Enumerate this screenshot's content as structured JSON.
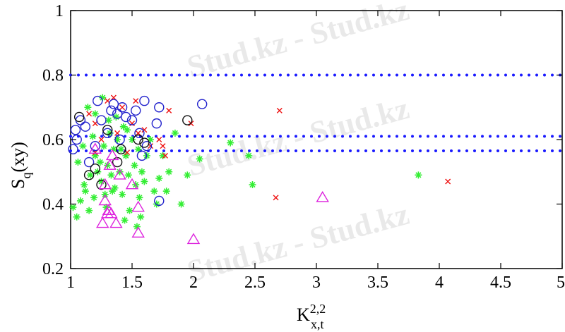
{
  "chart_data": {
    "type": "scatter",
    "xlabel": {
      "base": "K",
      "sup": "2,2",
      "sub": "x,t"
    },
    "ylabel": {
      "base": "S",
      "sub": "q",
      "suffix": "(xy)"
    },
    "xlim": [
      1,
      5
    ],
    "ylim": [
      0.2,
      1
    ],
    "xticks": [
      1,
      1.5,
      2,
      2.5,
      3,
      3.5,
      4,
      4.5,
      5
    ],
    "xtick_labels": [
      "1",
      "1.5",
      "2",
      "2.5",
      "3",
      "3.5",
      "4",
      "4.5",
      "5"
    ],
    "yticks": [
      0.2,
      0.4,
      0.6,
      0.8,
      1
    ],
    "ytick_labels": [
      "0.2",
      "0.4",
      "0.6",
      "0.8",
      "1"
    ],
    "grid": false,
    "legend": "none",
    "reference_lines": [
      {
        "y": 0.8,
        "color": "#1a1aff",
        "style": "dotted"
      },
      {
        "y": 0.61,
        "color": "#1a1aff",
        "style": "dotted"
      },
      {
        "y": 0.565,
        "color": "#1a1aff",
        "style": "dotted"
      }
    ],
    "series": [
      {
        "marker": "star",
        "color": "#33ee33",
        "points": [
          [
            1.02,
            0.39
          ],
          [
            1.05,
            0.36
          ],
          [
            1.08,
            0.41
          ],
          [
            1.1,
            0.58
          ],
          [
            1.12,
            0.44
          ],
          [
            1.15,
            0.38
          ],
          [
            1.18,
            0.61
          ],
          [
            1.2,
            0.55
          ],
          [
            1.22,
            0.5
          ],
          [
            1.25,
            0.47
          ],
          [
            1.27,
            0.58
          ],
          [
            1.28,
            0.43
          ],
          [
            1.3,
            0.52
          ],
          [
            1.31,
            0.66
          ],
          [
            1.33,
            0.49
          ],
          [
            1.35,
            0.57
          ],
          [
            1.36,
            0.45
          ],
          [
            1.38,
            0.6
          ],
          [
            1.4,
            0.5
          ],
          [
            1.42,
            0.43
          ],
          [
            1.43,
            0.64
          ],
          [
            1.45,
            0.55
          ],
          [
            1.47,
            0.49
          ],
          [
            1.48,
            0.38
          ],
          [
            1.5,
            0.6
          ],
          [
            1.52,
            0.52
          ],
          [
            1.53,
            0.46
          ],
          [
            1.55,
            0.57
          ],
          [
            1.56,
            0.42
          ],
          [
            1.57,
            0.36
          ],
          [
            1.58,
            0.5
          ],
          [
            1.6,
            0.47
          ],
          [
            1.62,
            0.55
          ],
          [
            1.65,
            0.6
          ],
          [
            1.68,
            0.44
          ],
          [
            1.7,
            0.4
          ],
          [
            1.72,
            0.48
          ],
          [
            1.75,
            0.55
          ],
          [
            1.78,
            0.44
          ],
          [
            1.8,
            0.5
          ],
          [
            1.85,
            0.62
          ],
          [
            1.9,
            0.4
          ],
          [
            1.95,
            0.49
          ],
          [
            2.05,
            0.54
          ],
          [
            2.3,
            0.59
          ],
          [
            2.45,
            0.55
          ],
          [
            2.48,
            0.46
          ],
          [
            3.83,
            0.49
          ],
          [
            1.14,
            0.7
          ],
          [
            1.2,
            0.68
          ],
          [
            1.26,
            0.73
          ],
          [
            1.32,
            0.62
          ],
          [
            1.37,
            0.67
          ],
          [
            1.41,
            0.57
          ],
          [
            1.46,
            0.63
          ],
          [
            1.24,
            0.53
          ],
          [
            1.16,
            0.49
          ],
          [
            1.06,
            0.53
          ],
          [
            1.34,
            0.44
          ],
          [
            1.29,
            0.39
          ],
          [
            1.44,
            0.35
          ],
          [
            1.54,
            0.33
          ],
          [
            1.11,
            0.46
          ],
          [
            1.19,
            0.42
          ]
        ]
      },
      {
        "marker": "x",
        "color": "#ee1111",
        "points": [
          [
            1.15,
            0.68
          ],
          [
            1.2,
            0.65
          ],
          [
            1.25,
            0.6
          ],
          [
            1.3,
            0.72
          ],
          [
            1.35,
            0.73
          ],
          [
            1.42,
            0.7
          ],
          [
            1.5,
            0.65
          ],
          [
            1.55,
            0.62
          ],
          [
            1.65,
            0.58
          ],
          [
            1.72,
            0.6
          ],
          [
            1.75,
            0.58
          ],
          [
            1.8,
            0.69
          ],
          [
            1.98,
            0.65
          ],
          [
            2.7,
            0.69
          ],
          [
            2.67,
            0.42
          ],
          [
            4.07,
            0.47
          ],
          [
            1.38,
            0.62
          ],
          [
            1.6,
            0.63
          ],
          [
            1.46,
            0.56
          ],
          [
            1.77,
            0.55
          ],
          [
            1.2,
            0.56
          ],
          [
            1.53,
            0.72
          ]
        ]
      },
      {
        "marker": "circle",
        "color": "#2222cc",
        "points": [
          [
            1.02,
            0.57
          ],
          [
            1.04,
            0.63
          ],
          [
            1.05,
            0.6
          ],
          [
            1.08,
            0.66
          ],
          [
            1.12,
            0.64
          ],
          [
            1.15,
            0.53
          ],
          [
            1.2,
            0.58
          ],
          [
            1.22,
            0.72
          ],
          [
            1.25,
            0.66
          ],
          [
            1.3,
            0.62
          ],
          [
            1.33,
            0.69
          ],
          [
            1.35,
            0.71
          ],
          [
            1.38,
            0.68
          ],
          [
            1.42,
            0.7
          ],
          [
            1.45,
            0.67
          ],
          [
            1.5,
            0.66
          ],
          [
            1.53,
            0.69
          ],
          [
            1.56,
            0.62
          ],
          [
            1.6,
            0.72
          ],
          [
            1.62,
            0.58
          ],
          [
            1.7,
            0.65
          ],
          [
            1.72,
            0.7
          ],
          [
            1.72,
            0.41
          ],
          [
            2.07,
            0.71
          ],
          [
            1.58,
            0.55
          ],
          [
            1.4,
            0.6
          ]
        ]
      },
      {
        "marker": "circle",
        "color": "#111111",
        "points": [
          [
            1.07,
            0.67
          ],
          [
            1.15,
            0.49
          ],
          [
            1.2,
            0.51
          ],
          [
            1.3,
            0.63
          ],
          [
            1.38,
            0.53
          ],
          [
            1.41,
            0.57
          ],
          [
            1.6,
            0.59
          ],
          [
            1.55,
            0.6
          ],
          [
            1.25,
            0.46
          ],
          [
            1.95,
            0.66
          ]
        ]
      },
      {
        "marker": "triangle",
        "color": "#dd22dd",
        "points": [
          [
            1.2,
            0.57
          ],
          [
            1.28,
            0.41
          ],
          [
            1.3,
            0.37
          ],
          [
            1.31,
            0.38
          ],
          [
            1.33,
            0.37
          ],
          [
            1.34,
            0.55
          ],
          [
            1.37,
            0.34
          ],
          [
            1.4,
            0.49
          ],
          [
            1.26,
            0.34
          ],
          [
            1.28,
            0.46
          ],
          [
            1.5,
            0.46
          ],
          [
            1.55,
            0.31
          ],
          [
            1.55,
            0.39
          ],
          [
            2.0,
            0.29
          ],
          [
            3.05,
            0.42
          ],
          [
            1.32,
            0.52
          ]
        ]
      }
    ]
  },
  "watermark": "Stud.kz - Stud.kz"
}
